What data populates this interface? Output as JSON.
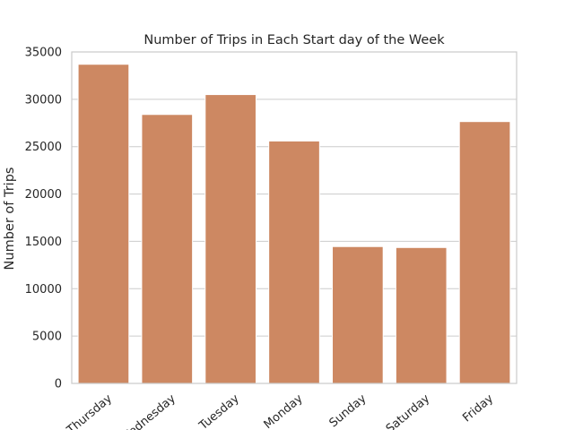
{
  "chart_data": {
    "type": "bar",
    "title": "Number of Trips in Each Start day of the Week",
    "xlabel": "",
    "ylabel": "Number of Trips",
    "categories": [
      "Thursday",
      "Wednesday",
      "Tuesday",
      "Monday",
      "Sunday",
      "Saturday",
      "Friday"
    ],
    "values": [
      33700,
      28400,
      30500,
      25600,
      14450,
      14350,
      27650
    ],
    "ylim": [
      0,
      35000
    ],
    "yticks": [
      0,
      5000,
      10000,
      15000,
      20000,
      25000,
      30000,
      35000
    ],
    "grid": "horizontal",
    "bar_color": "#cd8862",
    "grid_color": "#cccccc",
    "spine_color": "#cccccc"
  }
}
